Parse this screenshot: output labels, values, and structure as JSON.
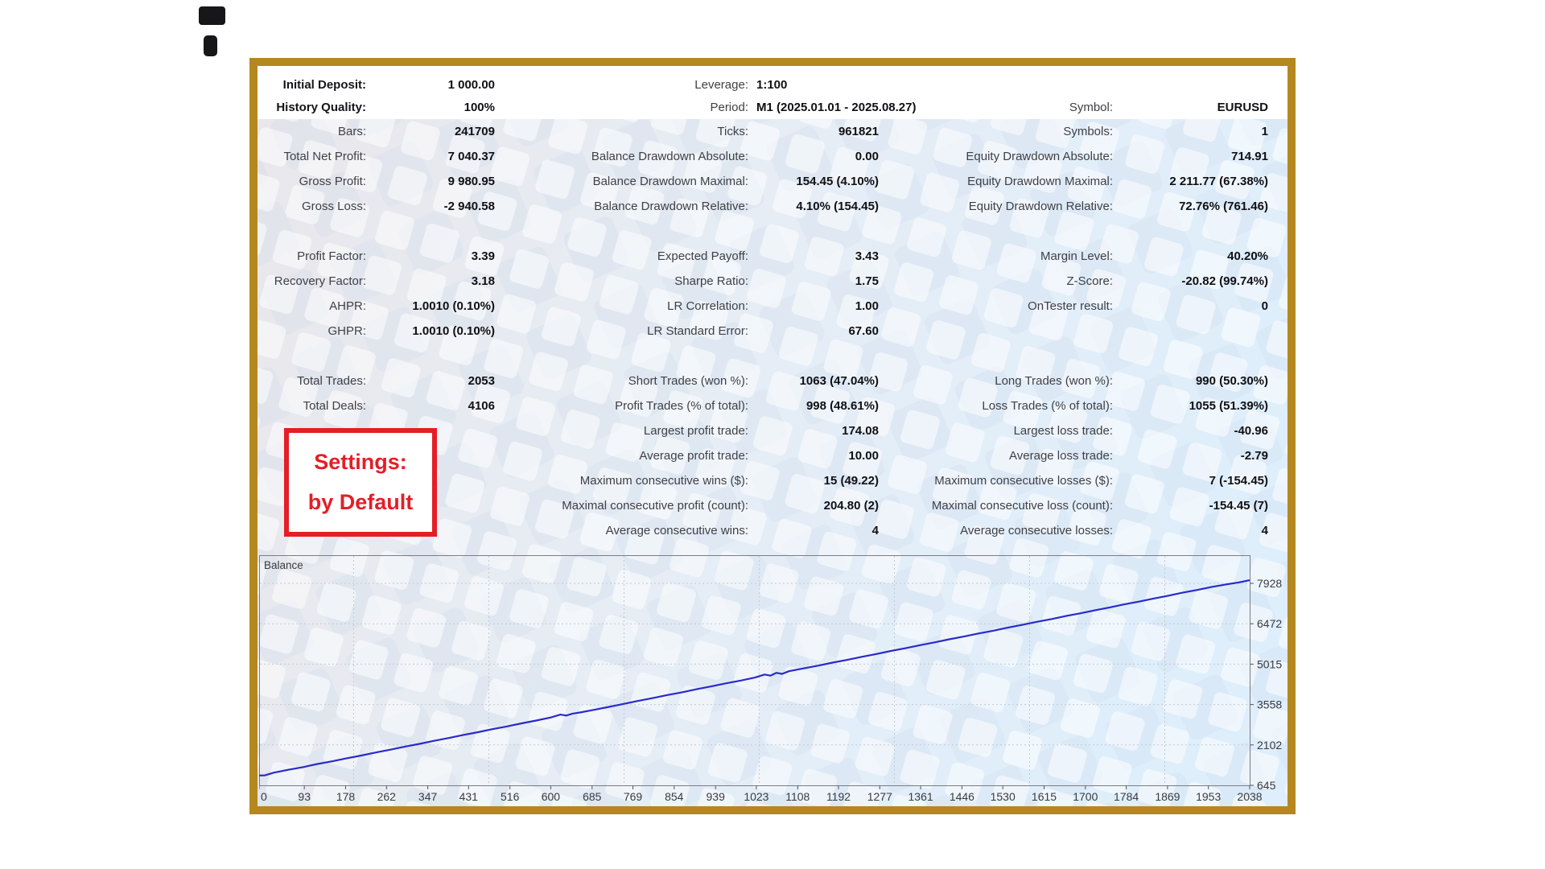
{
  "colors": {
    "frame": "#b5871f",
    "accent_red": "#e41e26",
    "label_text": "#3f3f46",
    "value_text": "#101014",
    "balance_line": "#2a2ac8",
    "chart_border": "#7c7c84"
  },
  "header": {
    "rows": [
      {
        "l1": "Initial Deposit:",
        "v1": "1 000.00",
        "l2": "Leverage:",
        "v2": "1:100",
        "l3": "",
        "v3": ""
      },
      {
        "l1": "History Quality:",
        "v1": "100%",
        "l2": "Period:",
        "v2": "M1 (2025.01.01 - 2025.08.27)",
        "l3": "Symbol:",
        "v3": "EURUSD"
      }
    ]
  },
  "stats": {
    "rows": [
      {
        "l1": "Bars:",
        "v1": "241709",
        "l2": "Ticks:",
        "v2": "961821",
        "l3": "Symbols:",
        "v3": "1"
      },
      {
        "l1": "Total Net Profit:",
        "v1": "7 040.37",
        "l2": "Balance Drawdown Absolute:",
        "v2": "0.00",
        "l3": "Equity Drawdown Absolute:",
        "v3": "714.91"
      },
      {
        "l1": "Gross Profit:",
        "v1": "9 980.95",
        "l2": "Balance Drawdown Maximal:",
        "v2": "154.45 (4.10%)",
        "l3": "Equity Drawdown Maximal:",
        "v3": "2 211.77 (67.38%)"
      },
      {
        "l1": "Gross Loss:",
        "v1": "-2 940.58",
        "l2": "Balance Drawdown Relative:",
        "v2": "4.10% (154.45)",
        "l3": "Equity Drawdown Relative:",
        "v3": "72.76% (761.46)"
      },
      {
        "l1": "",
        "v1": "",
        "l2": "",
        "v2": "",
        "l3": "",
        "v3": ""
      },
      {
        "l1": "Profit Factor:",
        "v1": "3.39",
        "l2": "Expected Payoff:",
        "v2": "3.43",
        "l3": "Margin Level:",
        "v3": "40.20%"
      },
      {
        "l1": "Recovery Factor:",
        "v1": "3.18",
        "l2": "Sharpe Ratio:",
        "v2": "1.75",
        "l3": "Z-Score:",
        "v3": "-20.82 (99.74%)"
      },
      {
        "l1": "AHPR:",
        "v1": "1.0010 (0.10%)",
        "l2": "LR Correlation:",
        "v2": "1.00",
        "l3": "OnTester result:",
        "v3": "0"
      },
      {
        "l1": "GHPR:",
        "v1": "1.0010 (0.10%)",
        "l2": "LR Standard Error:",
        "v2": "67.60",
        "l3": "",
        "v3": ""
      },
      {
        "l1": "",
        "v1": "",
        "l2": "",
        "v2": "",
        "l3": "",
        "v3": ""
      },
      {
        "l1": "Total Trades:",
        "v1": "2053",
        "l2": "Short Trades (won %):",
        "v2": "1063 (47.04%)",
        "l3": "Long Trades (won %):",
        "v3": "990 (50.30%)"
      },
      {
        "l1": "Total Deals:",
        "v1": "4106",
        "l2": "Profit Trades (% of total):",
        "v2": "998 (48.61%)",
        "l3": "Loss Trades (% of total):",
        "v3": "1055 (51.39%)"
      },
      {
        "l1": "",
        "v1": "",
        "l2": "Largest profit trade:",
        "v2": "174.08",
        "l3": "Largest loss trade:",
        "v3": "-40.96"
      },
      {
        "l1": "",
        "v1": "",
        "l2": "Average profit trade:",
        "v2": "10.00",
        "l3": "Average loss trade:",
        "v3": "-2.79"
      },
      {
        "l1": "",
        "v1": "",
        "l2": "Maximum consecutive wins ($):",
        "v2": "15 (49.22)",
        "l3": "Maximum consecutive losses ($):",
        "v3": "7 (-154.45)"
      },
      {
        "l1": "",
        "v1": "",
        "l2": "Maximal consecutive profit (count):",
        "v2": "204.80 (2)",
        "l3": "Maximal consecutive loss (count):",
        "v3": "-154.45 (7)"
      },
      {
        "l1": "",
        "v1": "",
        "l2": "Average consecutive wins:",
        "v2": "4",
        "l3": "Average consecutive losses:",
        "v3": "4"
      }
    ]
  },
  "settings_box": {
    "line1": "Settings:",
    "line2": "by Default"
  },
  "chart_data": {
    "type": "line",
    "title": "Balance",
    "xlabel": "",
    "ylabel": "",
    "x_ticks": [
      0,
      93,
      178,
      262,
      347,
      431,
      516,
      600,
      685,
      769,
      854,
      939,
      1023,
      1108,
      1192,
      1277,
      1361,
      1446,
      1530,
      1615,
      1700,
      1784,
      1869,
      1953,
      2038
    ],
    "y_ticks": [
      645,
      2102,
      3558,
      5015,
      6472,
      7928
    ],
    "xlim": [
      0,
      2038
    ],
    "ylim": [
      645,
      8810
    ],
    "grid": "dotted",
    "legend_position": "none",
    "line_color": "#2a2ac8",
    "series": [
      {
        "name": "Balance",
        "points": [
          [
            0,
            1000
          ],
          [
            12,
            1004
          ],
          [
            30,
            1100
          ],
          [
            60,
            1205
          ],
          [
            90,
            1300
          ],
          [
            120,
            1415
          ],
          [
            150,
            1510
          ],
          [
            180,
            1620
          ],
          [
            210,
            1720
          ],
          [
            240,
            1830
          ],
          [
            270,
            1930
          ],
          [
            300,
            2040
          ],
          [
            330,
            2140
          ],
          [
            360,
            2250
          ],
          [
            390,
            2350
          ],
          [
            420,
            2460
          ],
          [
            450,
            2560
          ],
          [
            480,
            2670
          ],
          [
            510,
            2770
          ],
          [
            540,
            2880
          ],
          [
            570,
            2980
          ],
          [
            600,
            3090
          ],
          [
            620,
            3195
          ],
          [
            632,
            3160
          ],
          [
            645,
            3230
          ],
          [
            660,
            3270
          ],
          [
            690,
            3370
          ],
          [
            720,
            3475
          ],
          [
            750,
            3580
          ],
          [
            780,
            3690
          ],
          [
            810,
            3790
          ],
          [
            840,
            3900
          ],
          [
            870,
            4000
          ],
          [
            900,
            4110
          ],
          [
            930,
            4210
          ],
          [
            960,
            4320
          ],
          [
            990,
            4420
          ],
          [
            1020,
            4530
          ],
          [
            1040,
            4640
          ],
          [
            1052,
            4600
          ],
          [
            1064,
            4700
          ],
          [
            1076,
            4665
          ],
          [
            1090,
            4760
          ],
          [
            1120,
            4860
          ],
          [
            1150,
            4960
          ],
          [
            1180,
            5070
          ],
          [
            1210,
            5170
          ],
          [
            1240,
            5280
          ],
          [
            1270,
            5380
          ],
          [
            1300,
            5490
          ],
          [
            1330,
            5590
          ],
          [
            1360,
            5700
          ],
          [
            1390,
            5800
          ],
          [
            1420,
            5910
          ],
          [
            1450,
            6010
          ],
          [
            1480,
            6120
          ],
          [
            1510,
            6220
          ],
          [
            1540,
            6330
          ],
          [
            1570,
            6430
          ],
          [
            1600,
            6540
          ],
          [
            1630,
            6640
          ],
          [
            1660,
            6750
          ],
          [
            1690,
            6850
          ],
          [
            1720,
            6960
          ],
          [
            1750,
            7060
          ],
          [
            1780,
            7170
          ],
          [
            1810,
            7270
          ],
          [
            1840,
            7380
          ],
          [
            1870,
            7480
          ],
          [
            1900,
            7590
          ],
          [
            1930,
            7690
          ],
          [
            1960,
            7800
          ],
          [
            1990,
            7890
          ],
          [
            2015,
            7960
          ],
          [
            2038,
            8040
          ]
        ]
      }
    ]
  }
}
